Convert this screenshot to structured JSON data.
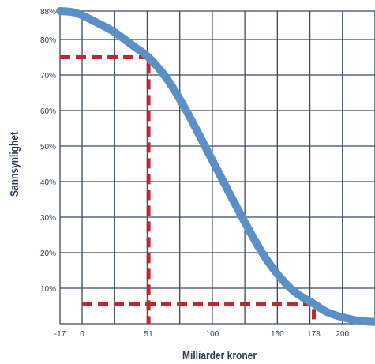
{
  "chart_data": {
    "type": "line",
    "title": "",
    "xlabel": "Milliarder kroner",
    "ylabel": "Sannsynlighet",
    "xlim": [
      -17,
      225
    ],
    "ylim": [
      0,
      88
    ],
    "grid": true,
    "x_ticks": [
      {
        "value": -17,
        "label": "-17"
      },
      {
        "value": 0,
        "label": "0"
      },
      {
        "value": 51,
        "label": "51"
      },
      {
        "value": 100,
        "label": "100"
      },
      {
        "value": 150,
        "label": "150"
      },
      {
        "value": 178,
        "label": "178"
      },
      {
        "value": 200,
        "label": "200"
      }
    ],
    "y_ticks": [
      {
        "value": 10,
        "label": "10%"
      },
      {
        "value": 20,
        "label": "20%"
      },
      {
        "value": 30,
        "label": "30%"
      },
      {
        "value": 40,
        "label": "40%"
      },
      {
        "value": 50,
        "label": "50%"
      },
      {
        "value": 60,
        "label": "60%"
      },
      {
        "value": 70,
        "label": "70%"
      },
      {
        "value": 80,
        "label": "80%"
      },
      {
        "value": 88,
        "label": "88%"
      }
    ],
    "series": [
      {
        "color": "#5b8fc7",
        "x": [
          -17,
          -5,
          10,
          25,
          40,
          51,
          65,
          80,
          100,
          120,
          140,
          160,
          178,
          190,
          210,
          225
        ],
        "y": [
          88,
          87.5,
          85,
          82,
          78,
          75,
          69,
          60,
          46,
          32,
          19,
          10,
          5.6,
          3,
          1,
          0.5
        ]
      }
    ],
    "reference_lines": [
      {
        "color": "#c0282d",
        "points": [
          [
            -17,
            75
          ],
          [
            51,
            75
          ],
          [
            51,
            0
          ]
        ]
      },
      {
        "color": "#c0282d",
        "points": [
          [
            0,
            5.6
          ],
          [
            178,
            5.6
          ],
          [
            178,
            0
          ]
        ]
      }
    ]
  }
}
